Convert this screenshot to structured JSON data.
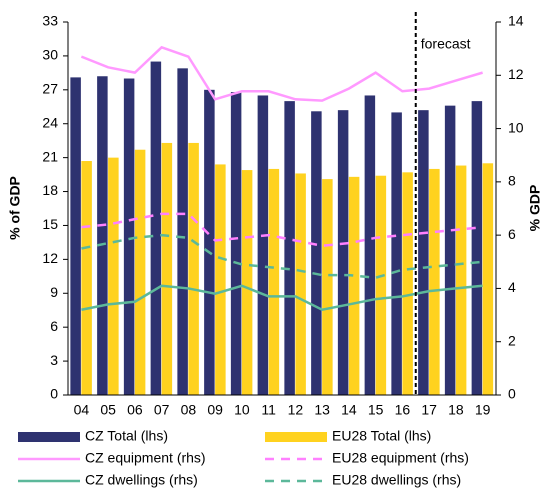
{
  "chart_data": {
    "type": "bar_line",
    "categories": [
      "04",
      "05",
      "06",
      "07",
      "08",
      "09",
      "10",
      "11",
      "12",
      "13",
      "14",
      "15",
      "16",
      "17",
      "18",
      "19"
    ],
    "ylabel": "% of GDP",
    "y2label": "% GDP",
    "annotation": "forecast",
    "ylim": [
      0,
      33
    ],
    "yticks": [
      0,
      3,
      6,
      9,
      12,
      15,
      18,
      21,
      24,
      27,
      30,
      33
    ],
    "y2lim": [
      0,
      14
    ],
    "y2ticks": [
      0,
      2,
      4,
      6,
      8,
      10,
      12,
      14
    ],
    "series": [
      {
        "name": "CZ Total (lhs)",
        "kind": "bar",
        "color": "#2e3270",
        "values": [
          28.1,
          28.2,
          28.0,
          29.5,
          28.9,
          27.0,
          26.8,
          26.5,
          26.0,
          25.1,
          25.2,
          26.5,
          25.0,
          25.2,
          25.6,
          26.0
        ]
      },
      {
        "name": "EU28 Total (lhs)",
        "kind": "bar",
        "color": "#ffd21f",
        "values": [
          20.7,
          21.0,
          21.7,
          22.3,
          22.3,
          20.4,
          19.9,
          20.0,
          19.6,
          19.1,
          19.3,
          19.4,
          19.7,
          20.0,
          20.3,
          20.5
        ]
      },
      {
        "name": "CZ equipment (rhs)",
        "kind": "line",
        "axis": "y2",
        "dashed": false,
        "color": "#ff99ff",
        "values": [
          12.7,
          12.3,
          12.1,
          13.05,
          12.7,
          11.1,
          11.4,
          11.4,
          11.1,
          11.05,
          11.5,
          12.1,
          11.4,
          11.5,
          11.8,
          12.1
        ]
      },
      {
        "name": "EU28 equipment (rhs)",
        "kind": "line",
        "axis": "y2",
        "dashed": true,
        "color": "#ff80ff",
        "values": [
          6.3,
          6.4,
          6.6,
          6.8,
          6.8,
          5.8,
          5.9,
          6.0,
          5.8,
          5.6,
          5.7,
          5.9,
          6.0,
          6.1,
          6.2,
          6.3
        ]
      },
      {
        "name": "CZ dwellings (rhs)",
        "kind": "line",
        "axis": "y2",
        "dashed": false,
        "color": "#5cb89a",
        "values": [
          3.2,
          3.4,
          3.5,
          4.1,
          4.0,
          3.8,
          4.1,
          3.7,
          3.7,
          3.2,
          3.4,
          3.6,
          3.7,
          3.9,
          4.0,
          4.1
        ]
      },
      {
        "name": "EU28 dwellings (rhs)",
        "kind": "line",
        "axis": "y2",
        "dashed": true,
        "color": "#5cb89a",
        "values": [
          5.5,
          5.7,
          5.9,
          6.0,
          5.9,
          5.2,
          4.9,
          4.8,
          4.7,
          4.5,
          4.5,
          4.4,
          4.7,
          4.8,
          4.9,
          5.0
        ]
      }
    ]
  }
}
